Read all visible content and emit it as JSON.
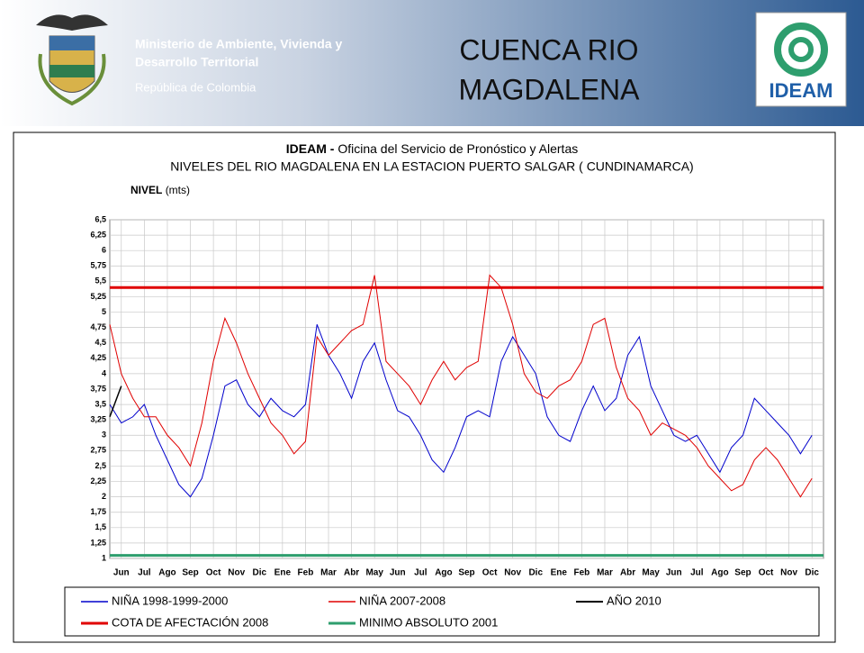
{
  "header": {
    "ministry": [
      "Ministerio de Ambiente, Vivienda y",
      "Desarrollo Territorial"
    ],
    "country": "República de Colombia",
    "title": [
      "CUENCA RIO",
      "MAGDALENA"
    ],
    "logo": "IDEAM"
  },
  "chart_data": {
    "type": "line",
    "title": {
      "bold": "IDEAM -",
      "rest": "Oficina del Servicio de Pronóstico y Alertas"
    },
    "subtitle": "NIVELES DEL RIO MAGDALENA EN LA ESTACION PUERTO SALGAR ( CUNDINAMARCA)",
    "y_label": {
      "bold": "NIVEL",
      "rest": "(mts)"
    },
    "x": [
      0,
      0.5,
      1,
      1.5,
      2,
      2.5,
      3,
      3.5,
      4,
      4.5,
      5,
      5.5,
      6,
      6.5,
      7,
      7.5,
      8,
      8.5,
      9,
      9.5,
      10,
      10.5,
      11,
      11.5,
      12,
      12.5,
      13,
      13.5,
      14,
      14.5,
      15,
      15.5,
      16,
      16.5,
      17,
      17.5,
      18,
      18.5,
      19,
      19.5,
      20,
      20.5,
      21,
      21.5,
      22,
      22.5,
      23,
      23.5,
      24,
      24.5,
      25,
      25.5,
      26,
      26.5,
      27,
      27.5,
      28,
      28.5,
      29,
      29.5,
      30,
      30.5
    ],
    "xlim": [
      0,
      31
    ],
    "xticks": [
      {
        "value": 0.5,
        "label": "Jun"
      },
      {
        "value": 1.5,
        "label": "Jul"
      },
      {
        "value": 2.5,
        "label": "Ago"
      },
      {
        "value": 3.5,
        "label": "Sep"
      },
      {
        "value": 4.5,
        "label": "Oct"
      },
      {
        "value": 5.5,
        "label": "Nov"
      },
      {
        "value": 6.5,
        "label": "Dic"
      },
      {
        "value": 7.5,
        "label": "Ene"
      },
      {
        "value": 8.5,
        "label": "Feb"
      },
      {
        "value": 9.5,
        "label": "Mar"
      },
      {
        "value": 10.5,
        "label": "Abr"
      },
      {
        "value": 11.5,
        "label": "May"
      },
      {
        "value": 12.5,
        "label": "Jun"
      },
      {
        "value": 13.5,
        "label": "Jul"
      },
      {
        "value": 14.5,
        "label": "Ago"
      },
      {
        "value": 15.5,
        "label": "Sep"
      },
      {
        "value": 16.5,
        "label": "Oct"
      },
      {
        "value": 17.5,
        "label": "Nov"
      },
      {
        "value": 18.5,
        "label": "Dic"
      },
      {
        "value": 19.5,
        "label": "Ene"
      },
      {
        "value": 20.5,
        "label": "Feb"
      },
      {
        "value": 21.5,
        "label": "Mar"
      },
      {
        "value": 22.5,
        "label": "Abr"
      },
      {
        "value": 23.5,
        "label": "May"
      },
      {
        "value": 24.5,
        "label": "Jun"
      },
      {
        "value": 25.5,
        "label": "Jul"
      },
      {
        "value": 26.5,
        "label": "Ago"
      },
      {
        "value": 27.5,
        "label": "Sep"
      },
      {
        "value": 28.5,
        "label": "Oct"
      },
      {
        "value": 29.5,
        "label": "Nov"
      },
      {
        "value": 30.5,
        "label": "Dic"
      }
    ],
    "ylim": [
      1,
      6.5
    ],
    "yticks": [
      1,
      {
        "value": 1.25,
        "label": "1,25"
      },
      {
        "value": 1.5,
        "label": "1,5"
      },
      {
        "value": 1.75,
        "label": "1,75"
      },
      2,
      {
        "value": 2.25,
        "label": "2,25"
      },
      {
        "value": 2.5,
        "label": "2,5"
      },
      {
        "value": 2.75,
        "label": "2,75"
      },
      3,
      {
        "value": 3.25,
        "label": "3,25"
      },
      {
        "value": 3.5,
        "label": "3,5"
      },
      {
        "value": 3.75,
        "label": "3,75"
      },
      4,
      {
        "value": 4.25,
        "label": "4,25"
      },
      {
        "value": 4.5,
        "label": "4,5"
      },
      {
        "value": 4.75,
        "label": "4,75"
      },
      5,
      {
        "value": 5.25,
        "label": "5,25"
      },
      {
        "value": 5.5,
        "label": "5,5"
      },
      {
        "value": 5.75,
        "label": "5,75"
      },
      6,
      {
        "value": 6.25,
        "label": "6,25"
      },
      {
        "value": 6.5,
        "label": "6,5"
      }
    ],
    "grid": true,
    "series": [
      {
        "name": "NIÑA 1998-1999-2000",
        "color": "#0000cc",
        "width": 1,
        "values": [
          3.5,
          3.2,
          3.3,
          3.5,
          3.0,
          2.6,
          2.2,
          2.0,
          2.3,
          3.0,
          3.8,
          3.9,
          3.5,
          3.3,
          3.6,
          3.4,
          3.3,
          3.5,
          4.8,
          4.3,
          4.0,
          3.6,
          4.2,
          4.5,
          3.9,
          3.4,
          3.3,
          3.0,
          2.6,
          2.4,
          2.8,
          3.3,
          3.4,
          3.3,
          4.2,
          4.6,
          4.3,
          4.0,
          3.3,
          3.0,
          2.9,
          3.4,
          3.8,
          3.4,
          3.6,
          4.3,
          4.6,
          3.8,
          3.4,
          3.0,
          2.9,
          3.0,
          2.7,
          2.4,
          2.8,
          3.0,
          3.6,
          3.4,
          3.2,
          3.0,
          2.7,
          3.0
        ]
      },
      {
        "name": "NIÑA 2007-2008",
        "color": "#e00000",
        "width": 1,
        "values": [
          4.8,
          4.0,
          3.6,
          3.3,
          3.3,
          3.0,
          2.8,
          2.5,
          3.2,
          4.2,
          4.9,
          4.5,
          4.0,
          3.6,
          3.2,
          3.0,
          2.7,
          2.9,
          4.6,
          4.3,
          4.5,
          4.7,
          4.8,
          5.6,
          4.2,
          4.0,
          3.8,
          3.5,
          3.9,
          4.2,
          3.9,
          4.1,
          4.2,
          5.6,
          5.4,
          4.8,
          4.0,
          3.7,
          3.6,
          3.8,
          3.9,
          4.2,
          4.8,
          4.9,
          4.1,
          3.6,
          3.4,
          3.0,
          3.2,
          3.1,
          3.0,
          2.8,
          2.5,
          2.3,
          2.1,
          2.2,
          2.6,
          2.8,
          2.6,
          2.3,
          2.0,
          2.3
        ]
      },
      {
        "name": "AÑO 2010",
        "color": "#000000",
        "width": 1.5,
        "values": [
          3.3,
          3.8,
          null,
          null,
          null,
          null,
          null,
          null,
          null,
          null,
          null,
          null,
          null,
          null,
          null,
          null,
          null,
          null,
          null,
          null,
          null,
          null,
          null,
          null,
          null,
          null,
          null,
          null,
          null,
          null,
          null,
          null,
          null,
          null,
          null,
          null,
          null,
          null,
          null,
          null,
          null,
          null,
          null,
          null,
          null,
          null,
          null,
          null,
          null,
          null,
          null,
          null,
          null,
          null,
          null,
          null,
          null,
          null,
          null,
          null,
          null,
          null
        ]
      }
    ],
    "reference_lines": [
      {
        "name": "COTA DE AFECTACIÓN 2008",
        "color": "#e00000",
        "value": 5.4
      },
      {
        "name": "MINIMO ABSOLUTO 2001",
        "color": "#2e9e6e",
        "value": 1.05
      }
    ]
  }
}
